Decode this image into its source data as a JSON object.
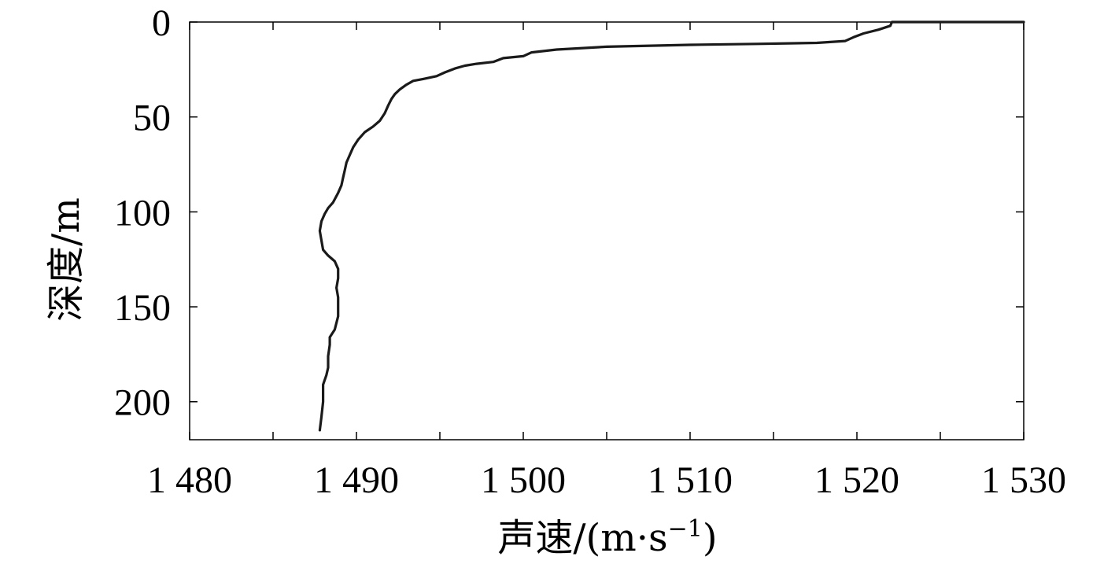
{
  "chart_data": {
    "type": "line",
    "xlabel": "声速/(m·s",
    "xlabel_sup": "−1",
    "xlabel_close": ")",
    "ylabel": "深度/m",
    "xlim": [
      1480,
      1530
    ],
    "ylim": [
      0,
      220
    ],
    "y_inverted": true,
    "grid": false,
    "x_ticks": [
      1480,
      1490,
      1500,
      1510,
      1520,
      1530
    ],
    "x_tick_labels": [
      "1 480",
      "1 490",
      "1 500",
      "1 510",
      "1 520",
      "1 530"
    ],
    "x_minor_ticks": [
      1485,
      1495,
      1505,
      1515,
      1525
    ],
    "y_ticks": [
      0,
      50,
      100,
      150,
      200
    ],
    "y_tick_labels": [
      "0",
      "50",
      "100",
      "150",
      "200"
    ],
    "series": [
      {
        "x": [
          1530,
          1522.1,
          1522.0,
          1521.3,
          1520.4,
          1519.8,
          1519.3,
          1517.6,
          1514.0,
          1510.0,
          1505.0,
          1502.0,
          1500.5,
          1500.0,
          1498.8,
          1498.2,
          1497.2,
          1496.5,
          1495.9,
          1495.3,
          1494.8,
          1494.0,
          1493.4,
          1493.0,
          1492.6,
          1492.3,
          1492.1,
          1491.9,
          1491.7,
          1491.4,
          1491.0,
          1490.5,
          1490.1,
          1489.8,
          1489.6,
          1489.4,
          1489.3,
          1489.2,
          1489.1,
          1488.9,
          1488.6,
          1488.3,
          1488.1,
          1487.9,
          1487.8,
          1487.9,
          1488.0,
          1488.3,
          1488.7,
          1488.9,
          1488.9,
          1488.8,
          1488.9,
          1488.9,
          1488.7,
          1488.4,
          1488.4,
          1488.3,
          1488.3,
          1488.2,
          1488.0,
          1488.0,
          1487.9,
          1487.8
        ],
        "y": [
          0,
          0,
          2,
          4,
          6,
          8,
          10,
          11,
          11.5,
          12,
          13,
          14.5,
          16,
          18,
          19,
          21,
          22,
          23,
          24.5,
          26.5,
          28.5,
          30,
          31,
          33,
          35.5,
          38,
          40.5,
          44,
          48,
          52,
          55,
          58,
          62,
          66,
          70,
          74,
          78,
          82,
          86,
          90,
          95,
          98,
          101,
          105,
          110,
          115,
          120,
          123,
          126,
          130,
          135,
          140,
          145,
          155,
          162,
          166,
          170,
          176,
          182,
          186,
          191,
          200,
          208,
          215
        ]
      }
    ]
  }
}
